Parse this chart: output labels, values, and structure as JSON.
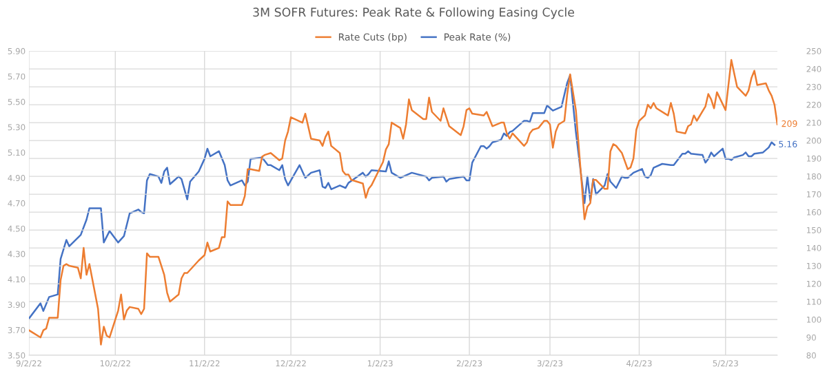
{
  "chart_data": {
    "type": "line",
    "title": "3M SOFR Futures: Peak Rate & Following Easing Cycle",
    "legend": "top",
    "grid": true,
    "xlim": [
      "2022-09-02",
      "2023-05-20"
    ],
    "xticks": [
      {
        "value": "2022-09-02",
        "label": "9/2/22"
      },
      {
        "value": "2022-10-02",
        "label": "10/2/22"
      },
      {
        "value": "2022-11-02",
        "label": "11/2/22"
      },
      {
        "value": "2022-12-02",
        "label": "12/2/22"
      },
      {
        "value": "2023-01-02",
        "label": "1/2/23"
      },
      {
        "value": "2023-02-02",
        "label": "2/2/23"
      },
      {
        "value": "2023-03-02",
        "label": "3/2/23"
      },
      {
        "value": "2023-04-02",
        "label": "4/2/23"
      },
      {
        "value": "2023-05-02",
        "label": "5/2/23"
      }
    ],
    "ylim": [
      3.5,
      5.9
    ],
    "yticks": [
      {
        "value": 3.5,
        "label": "3.50"
      },
      {
        "value": 3.7,
        "label": "3.70"
      },
      {
        "value": 3.9,
        "label": "3.90"
      },
      {
        "value": 4.1,
        "label": "4.10"
      },
      {
        "value": 4.3,
        "label": "4.30"
      },
      {
        "value": 4.5,
        "label": "4.50"
      },
      {
        "value": 4.7,
        "label": "4.70"
      },
      {
        "value": 4.9,
        "label": "4.90"
      },
      {
        "value": 5.1,
        "label": "5.10"
      },
      {
        "value": 5.3,
        "label": "5.30"
      },
      {
        "value": 5.5,
        "label": "5.50"
      },
      {
        "value": 5.7,
        "label": "5.70"
      },
      {
        "value": 5.9,
        "label": "5.90"
      }
    ],
    "y2lim": [
      80,
      250
    ],
    "y2ticks": [
      80,
      90,
      100,
      110,
      120,
      130,
      140,
      150,
      160,
      170,
      180,
      190,
      200,
      210,
      220,
      230,
      240,
      250
    ],
    "series": [
      {
        "name": "Rate Cuts (bp)",
        "color": "#ed7d31",
        "axis": "y2",
        "x": [
          "2022-09-02",
          "2022-09-06",
          "2022-09-07",
          "2022-09-08",
          "2022-09-09",
          "2022-09-12",
          "2022-09-13",
          "2022-09-14",
          "2022-09-15",
          "2022-09-16",
          "2022-09-19",
          "2022-09-20",
          "2022-09-21",
          "2022-09-22",
          "2022-09-23",
          "2022-09-26",
          "2022-09-27",
          "2022-09-28",
          "2022-09-29",
          "2022-09-30",
          "2022-10-03",
          "2022-10-04",
          "2022-10-05",
          "2022-10-06",
          "2022-10-07",
          "2022-10-10",
          "2022-10-11",
          "2022-10-12",
          "2022-10-13",
          "2022-10-14",
          "2022-10-17",
          "2022-10-19",
          "2022-10-20",
          "2022-10-21",
          "2022-10-24",
          "2022-10-25",
          "2022-10-26",
          "2022-10-27",
          "2022-10-31",
          "2022-11-02",
          "2022-11-03",
          "2022-11-04",
          "2022-11-07",
          "2022-11-08",
          "2022-11-09",
          "2022-11-10",
          "2022-11-11",
          "2022-11-15",
          "2022-11-16",
          "2022-11-17",
          "2022-11-18",
          "2022-11-21",
          "2022-11-22",
          "2022-11-23",
          "2022-11-25",
          "2022-11-28",
          "2022-11-29",
          "2022-11-30",
          "2022-12-01",
          "2022-12-02",
          "2022-12-06",
          "2022-12-07",
          "2022-12-09",
          "2022-12-12",
          "2022-12-13",
          "2022-12-14",
          "2022-12-15",
          "2022-12-16",
          "2022-12-19",
          "2022-12-20",
          "2022-12-21",
          "2022-12-22",
          "2022-12-23",
          "2022-12-27",
          "2022-12-28",
          "2022-12-29",
          "2022-12-30",
          "2023-01-03",
          "2023-01-04",
          "2023-01-05",
          "2023-01-06",
          "2023-01-09",
          "2023-01-10",
          "2023-01-11",
          "2023-01-12",
          "2023-01-13",
          "2023-01-17",
          "2023-01-18",
          "2023-01-19",
          "2023-01-20",
          "2023-01-23",
          "2023-01-24",
          "2023-01-26",
          "2023-01-30",
          "2023-01-31",
          "2023-02-01",
          "2023-02-02",
          "2023-02-03",
          "2023-02-07",
          "2023-02-08",
          "2023-02-10",
          "2023-02-13",
          "2023-02-14",
          "2023-02-15",
          "2023-02-16",
          "2023-02-17",
          "2023-02-21",
          "2023-02-22",
          "2023-02-23",
          "2023-02-24",
          "2023-02-26",
          "2023-02-28",
          "2023-03-01",
          "2023-03-02",
          "2023-03-03",
          "2023-03-04",
          "2023-03-05",
          "2023-03-07",
          "2023-03-08",
          "2023-03-09",
          "2023-03-11",
          "2023-03-14",
          "2023-03-15",
          "2023-03-16",
          "2023-03-17",
          "2023-03-18",
          "2023-03-21",
          "2023-03-22",
          "2023-03-23",
          "2023-03-24",
          "2023-03-25",
          "2023-03-27",
          "2023-03-29",
          "2023-03-30",
          "2023-03-31",
          "2023-04-01",
          "2023-04-02",
          "2023-04-04",
          "2023-04-05",
          "2023-04-06",
          "2023-04-07",
          "2023-04-08",
          "2023-04-11",
          "2023-04-12",
          "2023-04-13",
          "2023-04-14",
          "2023-04-15",
          "2023-04-18",
          "2023-04-19",
          "2023-04-20",
          "2023-04-21",
          "2023-04-22",
          "2023-04-25",
          "2023-04-26",
          "2023-04-27",
          "2023-04-28",
          "2023-04-29",
          "2023-05-02",
          "2023-05-04",
          "2023-05-06",
          "2023-05-09",
          "2023-05-10",
          "2023-05-11",
          "2023-05-12",
          "2023-05-13",
          "2023-05-16",
          "2023-05-17",
          "2023-05-18",
          "2023-05-19",
          "2023-05-20"
        ],
        "values": [
          94,
          90,
          94,
          95,
          101,
          101,
          122,
          130,
          131,
          130,
          129,
          123,
          140,
          125,
          131,
          106,
          86,
          96,
          91,
          90,
          105,
          114,
          100,
          105,
          107,
          106,
          103,
          106,
          137,
          135,
          135,
          125,
          115,
          110,
          114,
          123,
          126,
          126,
          133,
          136,
          143,
          138,
          140,
          146,
          146,
          166,
          164,
          164,
          169,
          184,
          184,
          183,
          191,
          192,
          193,
          189,
          190,
          200,
          205,
          213,
          210,
          215,
          201,
          200,
          197,
          202,
          205,
          197,
          193,
          183,
          181,
          181,
          178,
          176,
          168,
          173,
          175,
          188,
          195,
          198,
          210,
          207,
          201,
          209,
          223,
          217,
          212,
          212,
          224,
          216,
          211,
          218,
          208,
          203,
          208,
          217,
          218,
          215,
          214,
          216,
          208,
          210,
          210,
          204,
          201,
          204,
          197,
          199,
          204,
          206,
          207,
          211,
          211,
          209,
          196,
          205,
          209,
          211,
          226,
          237,
          217,
          156,
          163,
          165,
          178,
          178,
          173,
          173,
          194,
          198,
          197,
          193,
          184,
          185,
          190,
          206,
          211,
          214,
          220,
          218,
          221,
          218,
          215,
          214,
          221,
          215,
          205,
          204,
          208,
          209,
          214,
          211,
          219,
          226,
          223,
          218,
          227,
          217,
          245,
          230,
          225,
          228,
          235,
          239,
          231,
          232,
          228,
          225,
          220,
          209
        ],
        "value_labels": [
          null,
          null,
          null,
          null,
          null,
          null,
          null,
          null,
          null,
          null,
          null,
          null,
          null,
          null,
          null,
          null,
          null,
          null,
          null,
          null,
          null,
          null,
          null,
          null,
          null,
          null,
          null,
          null,
          null,
          null,
          null,
          null,
          null,
          null,
          null,
          null,
          null,
          null,
          null,
          null,
          null,
          null,
          null,
          null,
          null,
          null,
          null,
          null,
          null,
          null,
          null,
          null,
          null,
          null,
          null,
          null,
          null,
          null,
          null,
          null,
          null,
          null,
          null,
          null,
          null,
          null,
          null,
          null,
          null,
          null,
          null,
          null,
          null,
          null,
          null,
          null,
          null,
          null,
          null,
          null,
          null,
          null,
          null,
          null,
          null,
          null,
          null,
          null,
          null,
          null,
          null,
          null,
          null,
          null,
          null,
          null,
          null,
          null,
          null,
          null,
          null,
          null,
          null,
          null,
          null,
          null,
          null,
          null,
          null,
          null,
          null,
          null,
          null,
          null,
          null,
          null,
          null,
          null,
          null,
          null,
          null,
          null,
          null,
          null,
          null,
          null,
          null,
          null,
          null,
          null,
          null,
          null,
          null,
          null,
          null,
          null,
          null,
          null,
          null,
          null,
          null,
          null,
          null,
          null,
          null,
          null,
          null,
          null,
          null,
          null,
          null,
          null,
          null,
          null,
          null,
          null,
          null,
          null,
          null,
          null,
          null,
          null,
          null,
          null,
          null,
          null,
          null,
          null,
          null,
          "209"
        ]
      },
      {
        "name": "Peak Rate (%)",
        "color": "#4472c4",
        "axis": "y",
        "x": [
          "2022-09-02",
          "2022-09-06",
          "2022-09-07",
          "2022-09-09",
          "2022-09-12",
          "2022-09-13",
          "2022-09-15",
          "2022-09-16",
          "2022-09-20",
          "2022-09-22",
          "2022-09-23",
          "2022-09-27",
          "2022-09-28",
          "2022-09-30",
          "2022-10-03",
          "2022-10-05",
          "2022-10-07",
          "2022-10-10",
          "2022-10-11",
          "2022-10-12",
          "2022-10-13",
          "2022-10-14",
          "2022-10-17",
          "2022-10-18",
          "2022-10-19",
          "2022-10-20",
          "2022-10-21",
          "2022-10-24",
          "2022-10-25",
          "2022-10-27",
          "2022-10-28",
          "2022-10-31",
          "2022-11-02",
          "2022-11-03",
          "2022-11-04",
          "2022-11-07",
          "2022-11-09",
          "2022-11-10",
          "2022-11-11",
          "2022-11-15",
          "2022-11-16",
          "2022-11-17",
          "2022-11-18",
          "2022-11-22",
          "2022-11-24",
          "2022-11-25",
          "2022-11-28",
          "2022-11-29",
          "2022-11-30",
          "2022-12-01",
          "2022-12-05",
          "2022-12-07",
          "2022-12-09",
          "2022-12-12",
          "2022-12-13",
          "2022-12-14",
          "2022-12-15",
          "2022-12-16",
          "2022-12-19",
          "2022-12-21",
          "2022-12-22",
          "2022-12-27",
          "2022-12-28",
          "2022-12-29",
          "2022-12-30",
          "2023-01-04",
          "2023-01-05",
          "2023-01-06",
          "2023-01-09",
          "2023-01-13",
          "2023-01-18",
          "2023-01-19",
          "2023-01-20",
          "2023-01-24",
          "2023-01-25",
          "2023-01-26",
          "2023-01-31",
          "2023-02-01",
          "2023-02-02",
          "2023-02-03",
          "2023-02-06",
          "2023-02-07",
          "2023-02-08",
          "2023-02-09",
          "2023-02-10",
          "2023-02-13",
          "2023-02-14",
          "2023-02-15",
          "2023-02-16",
          "2023-02-17",
          "2023-02-21",
          "2023-02-22",
          "2023-02-23",
          "2023-02-24",
          "2023-02-28",
          "2023-03-01",
          "2023-03-03",
          "2023-03-06",
          "2023-03-08",
          "2023-03-09",
          "2023-03-11",
          "2023-03-14",
          "2023-03-15",
          "2023-03-16",
          "2023-03-17",
          "2023-03-18",
          "2023-03-21",
          "2023-03-22",
          "2023-03-23",
          "2023-03-25",
          "2023-03-27",
          "2023-03-28",
          "2023-03-29",
          "2023-03-31",
          "2023-04-03",
          "2023-04-04",
          "2023-04-05",
          "2023-04-06",
          "2023-04-07",
          "2023-04-10",
          "2023-04-13",
          "2023-04-14",
          "2023-04-17",
          "2023-04-18",
          "2023-04-19",
          "2023-04-20",
          "2023-04-24",
          "2023-04-25",
          "2023-04-26",
          "2023-04-27",
          "2023-04-28",
          "2023-05-01",
          "2023-05-02",
          "2023-05-03",
          "2023-05-04",
          "2023-05-05",
          "2023-05-08",
          "2023-05-09",
          "2023-05-10",
          "2023-05-11",
          "2023-05-12",
          "2023-05-15",
          "2023-05-17",
          "2023-05-18",
          "2023-05-19"
        ],
        "values": [
          3.79,
          3.91,
          3.85,
          3.96,
          3.98,
          4.26,
          4.41,
          4.36,
          4.45,
          4.57,
          4.66,
          4.66,
          4.39,
          4.48,
          4.39,
          4.44,
          4.62,
          4.65,
          4.63,
          4.62,
          4.88,
          4.93,
          4.91,
          4.86,
          4.95,
          4.98,
          4.85,
          4.91,
          4.89,
          4.73,
          4.87,
          4.95,
          5.05,
          5.13,
          5.07,
          5.11,
          5.0,
          4.88,
          4.84,
          4.88,
          4.84,
          4.87,
          5.05,
          5.06,
          5.0,
          5.0,
          4.96,
          5.0,
          4.89,
          4.84,
          5.0,
          4.9,
          4.94,
          4.96,
          4.83,
          4.82,
          4.86,
          4.81,
          4.84,
          4.82,
          4.86,
          4.94,
          4.91,
          4.93,
          4.96,
          4.95,
          5.03,
          4.94,
          4.9,
          4.94,
          4.91,
          4.88,
          4.9,
          4.91,
          4.87,
          4.89,
          4.91,
          4.88,
          4.88,
          5.02,
          5.15,
          5.15,
          5.13,
          5.15,
          5.18,
          5.2,
          5.25,
          5.23,
          5.26,
          5.27,
          5.35,
          5.35,
          5.34,
          5.41,
          5.41,
          5.47,
          5.43,
          5.46,
          5.65,
          5.71,
          5.26,
          4.7,
          4.91,
          4.72,
          4.89,
          4.77,
          4.84,
          4.93,
          4.87,
          4.82,
          4.91,
          4.9,
          4.9,
          4.94,
          4.97,
          4.91,
          4.9,
          4.92,
          4.98,
          5.01,
          5.0,
          5.0,
          5.09,
          5.09,
          5.11,
          5.09,
          5.08,
          5.02,
          5.05,
          5.1,
          5.07,
          5.13,
          5.05,
          5.05,
          5.04,
          5.06,
          5.08,
          5.1,
          5.07,
          5.07,
          5.09,
          5.1,
          5.14,
          5.18,
          5.16
        ],
        "value_labels": [
          null,
          null,
          null,
          null,
          null,
          null,
          null,
          null,
          null,
          null,
          null,
          null,
          null,
          null,
          null,
          null,
          null,
          null,
          null,
          null,
          null,
          null,
          null,
          null,
          null,
          null,
          null,
          null,
          null,
          null,
          null,
          null,
          null,
          null,
          null,
          null,
          null,
          null,
          null,
          null,
          null,
          null,
          null,
          null,
          null,
          null,
          null,
          null,
          null,
          null,
          null,
          null,
          null,
          null,
          null,
          null,
          null,
          null,
          null,
          null,
          null,
          null,
          null,
          null,
          null,
          null,
          null,
          null,
          null,
          null,
          null,
          null,
          null,
          null,
          null,
          null,
          null,
          null,
          null,
          null,
          null,
          null,
          null,
          null,
          null,
          null,
          null,
          null,
          null,
          null,
          null,
          null,
          null,
          null,
          null,
          null,
          null,
          null,
          null,
          null,
          null,
          null,
          null,
          null,
          null,
          null,
          null,
          null,
          null,
          null,
          null,
          null,
          null,
          null,
          null,
          null,
          null,
          null,
          null,
          null,
          null,
          null,
          null,
          null,
          null,
          null,
          null,
          null,
          null,
          null,
          null,
          null,
          null,
          null,
          null,
          null,
          null,
          null,
          null,
          null,
          null,
          null,
          null,
          null,
          "5.16"
        ]
      }
    ]
  }
}
